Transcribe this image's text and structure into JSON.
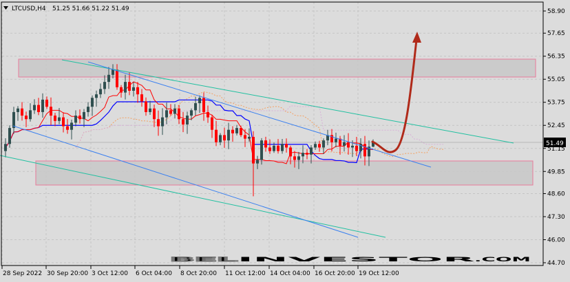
{
  "header": {
    "symbol": "LTCUSD,H4",
    "ohlc_text": "51.25 51.66 51.22 51.49"
  },
  "watermark": {
    "part1": "BEL",
    "part2": "INVESTOR",
    "part3": ".COM"
  },
  "chart_data": {
    "type": "candlestick",
    "symbol": "LTCUSD",
    "timeframe": "H4",
    "last": {
      "open": 51.25,
      "high": 51.66,
      "low": 51.22,
      "close": 51.49
    },
    "current_price_label": "51.49",
    "y_ticks": [
      "58.90",
      "57.65",
      "56.35",
      "55.05",
      "53.75",
      "52.45",
      "51.15",
      "49.85",
      "48.60",
      "47.30",
      "46.00",
      "44.70"
    ],
    "ylim": [
      44.7,
      58.9
    ],
    "x_ticks": [
      "28 Sep 2022",
      "30 Sep 20:00",
      "3 Oct 12:00",
      "6 Oct 04:00",
      "8 Oct 20:00",
      "11 Oct 12:00",
      "14 Oct 04:00",
      "16 Oct 20:00",
      "19 Oct 12:00"
    ],
    "closes": [
      51.4,
      52.3,
      53.2,
      53.4,
      53.0,
      52.8,
      53.3,
      53.6,
      53.2,
      53.9,
      53.5,
      53.0,
      52.7,
      52.9,
      52.4,
      52.2,
      52.6,
      53.0,
      52.8,
      53.2,
      53.5,
      54.0,
      54.2,
      54.5,
      54.9,
      55.3,
      55.6,
      54.6,
      54.3,
      54.9,
      54.4,
      54.6,
      54.2,
      53.8,
      53.2,
      53.4,
      52.8,
      52.4,
      52.9,
      53.3,
      53.1,
      53.4,
      52.8,
      52.5,
      53.0,
      53.3,
      53.7,
      54.0,
      53.2,
      52.9,
      52.2,
      51.5,
      51.9,
      51.6,
      52.2,
      52.0,
      52.3,
      51.9,
      51.7,
      51.8,
      50.3,
      50.5,
      51.6,
      51.2,
      51.0,
      51.3,
      51.0,
      51.4,
      51.2,
      50.7,
      50.5,
      50.7,
      50.9,
      50.8,
      51.2,
      51.4,
      51.2,
      51.6,
      51.9,
      51.5,
      51.7,
      51.3,
      51.5,
      51.2,
      51.3,
      51.0,
      51.4,
      50.7,
      51.25,
      51.49
    ],
    "notable_extremes": {
      "high": 55.9,
      "low": 48.45
    },
    "indicators": [
      "Ichimoku"
    ],
    "zones": [
      {
        "from": 55.15,
        "to": 56.2
      },
      {
        "from": 49.2,
        "to": 50.55
      }
    ],
    "colors": {
      "bull": "#2f4f4f",
      "bear": "#ff0000",
      "tenkan": "#ff0000",
      "kijun": "#0000ff",
      "background": "#dcdcdc",
      "zone_border": "#e87a9a",
      "forecast_arrow": "#b02a1a"
    },
    "grid": true
  }
}
